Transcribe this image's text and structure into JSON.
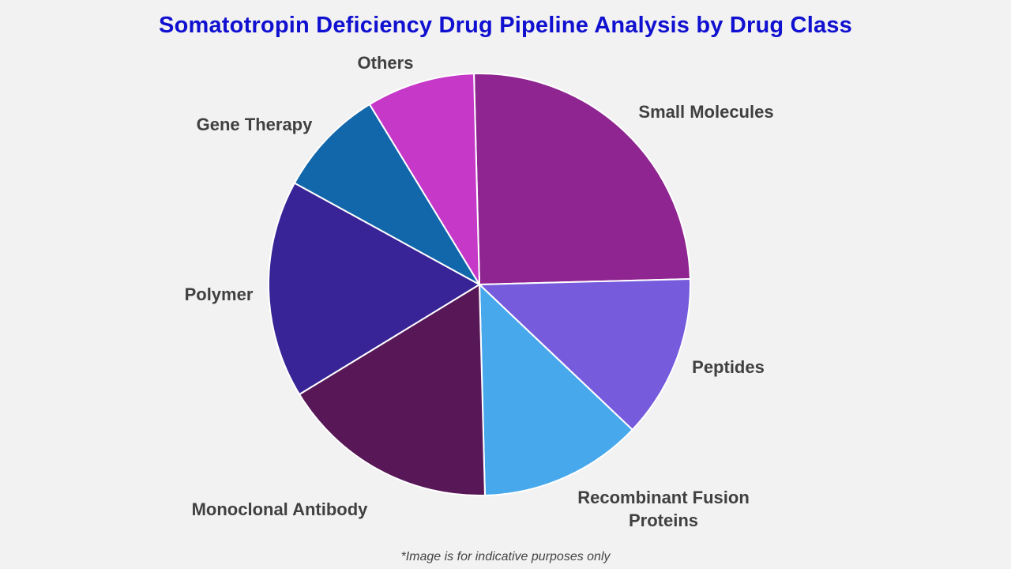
{
  "chart_data": {
    "type": "pie",
    "title": "Somatotropin Deficiency Drug Pipeline Analysis by Drug Class",
    "slices": [
      {
        "label": "Small Molecules",
        "value": 25,
        "color": "#8e2590"
      },
      {
        "label": "Peptides",
        "value": 12.5,
        "color": "#765cdc"
      },
      {
        "label": "Recombinant Fusion Proteins",
        "value": 12.5,
        "color": "#47a8ec"
      },
      {
        "label": "Monoclonal Antibody",
        "value": 16.7,
        "color": "#581858"
      },
      {
        "label": "Polymer",
        "value": 16.7,
        "color": "#382496"
      },
      {
        "label": "Gene Therapy",
        "value": 8.3,
        "color": "#1266aa"
      },
      {
        "label": "Others",
        "value": 8.3,
        "color": "#c638c8"
      }
    ]
  },
  "footnote": "*Image is for indicative purposes only"
}
